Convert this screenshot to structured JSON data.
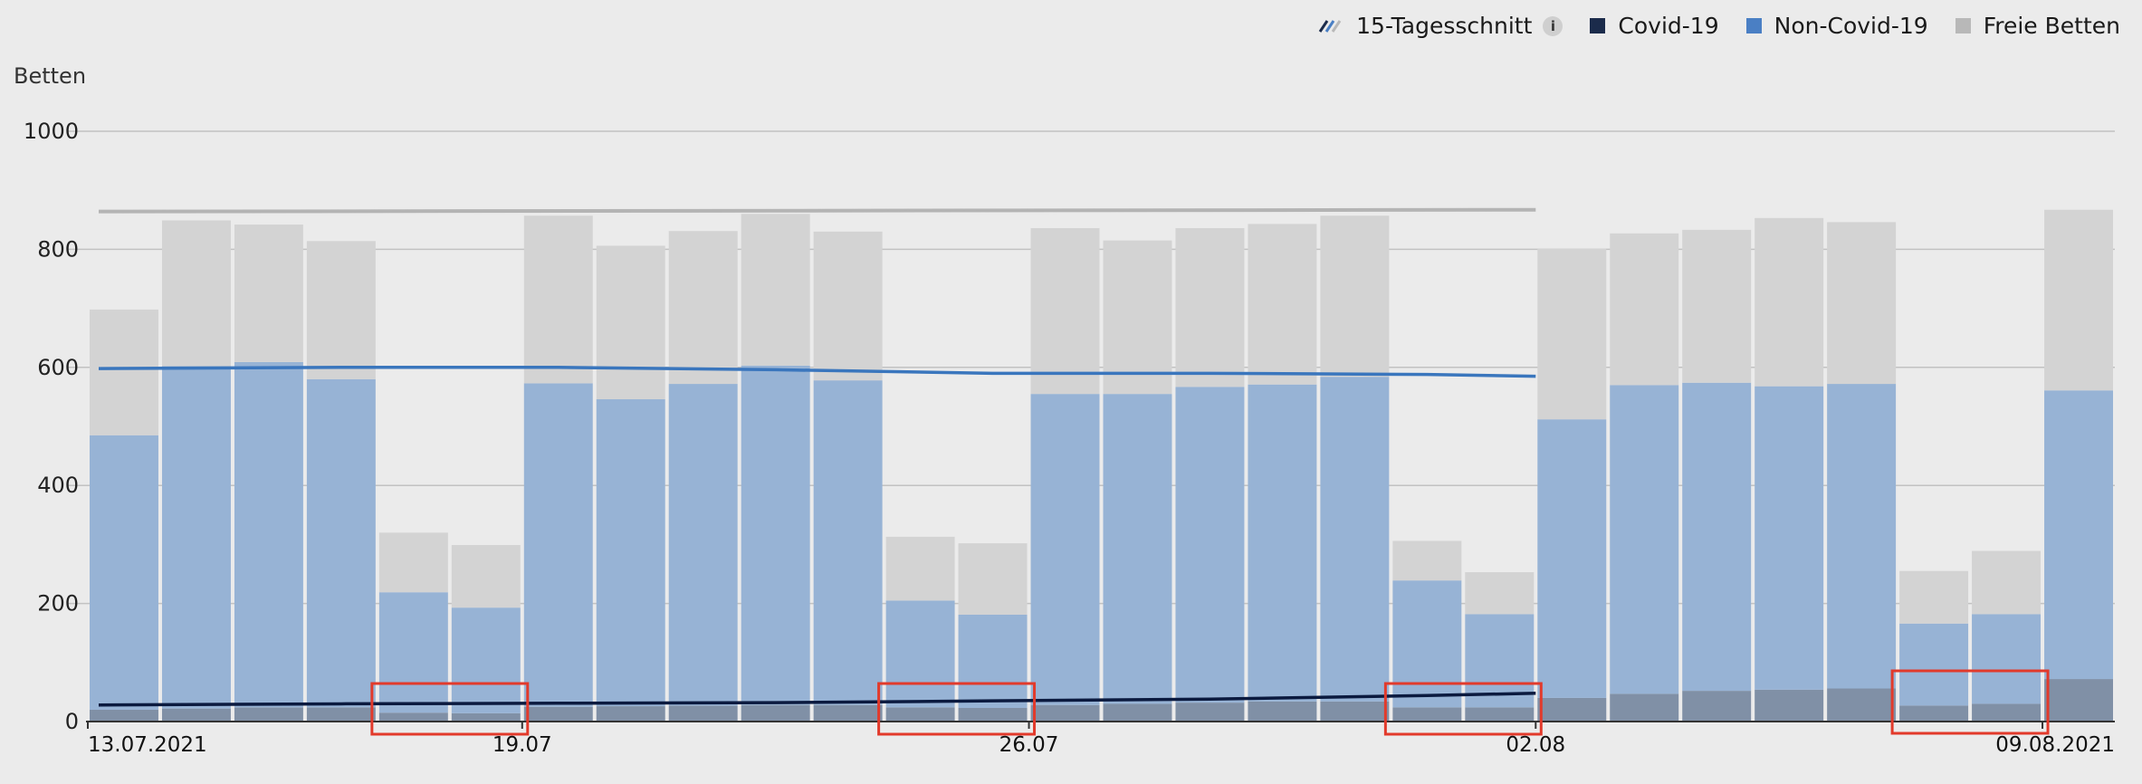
{
  "colors": {
    "background": "#ebebeb",
    "covid": "#1b2b4b",
    "non_covid": "#4a7fc4",
    "free_beds": "#b8b8b8",
    "covid_bar": "#8090a6",
    "non_covid_bar": "#97b3d5",
    "free_bar": "#d3d3d3",
    "avg_covid_line": "#0b1a3f",
    "avg_noncovid_line": "#3a76bd",
    "avg_total_line": "#b4b4b4",
    "grid": "#c2c2c2",
    "highlight_box": "#e23a2b"
  },
  "legend": {
    "avg_label": "15-Tagesschnitt",
    "info_icon": "i",
    "covid_label": "Covid-19",
    "noncovid_label": "Non-Covid-19",
    "free_label": "Freie Betten"
  },
  "chart_data": {
    "type": "bar",
    "stacked": true,
    "ylabel": "Betten",
    "ylim": [
      0,
      1000
    ],
    "yticks": [
      0,
      200,
      400,
      600,
      800,
      1000
    ],
    "grid": true,
    "legend_position": "top-right",
    "x_tick_labels": [
      {
        "index": 0,
        "label": "13.07.2021"
      },
      {
        "index": 6,
        "label": "19.07"
      },
      {
        "index": 13,
        "label": "26.07"
      },
      {
        "index": 20,
        "label": "02.08"
      },
      {
        "index": 27,
        "label": "09.08.2021"
      }
    ],
    "categories": [
      "13.07.2021",
      "14.07.2021",
      "15.07.2021",
      "16.07.2021",
      "17.07.2021",
      "18.07.2021",
      "19.07.2021",
      "20.07.2021",
      "21.07.2021",
      "22.07.2021",
      "23.07.2021",
      "24.07.2021",
      "25.07.2021",
      "26.07.2021",
      "27.07.2021",
      "28.07.2021",
      "29.07.2021",
      "30.07.2021",
      "31.07.2021",
      "01.08.2021",
      "02.08.2021",
      "03.08.2021",
      "04.08.2021",
      "05.08.2021",
      "06.08.2021",
      "07.08.2021",
      "08.08.2021",
      "09.08.2021"
    ],
    "series": [
      {
        "name": "Covid-19",
        "values": [
          20,
          22,
          24,
          24,
          15,
          14,
          25,
          26,
          27,
          28,
          28,
          24,
          23,
          28,
          30,
          32,
          34,
          34,
          24,
          24,
          40,
          47,
          52,
          54,
          56,
          27,
          30,
          72
        ]
      },
      {
        "name": "Non-Covid-19",
        "values": [
          465,
          580,
          585,
          556,
          204,
          179,
          548,
          520,
          545,
          575,
          550,
          181,
          158,
          527,
          525,
          535,
          537,
          550,
          215,
          158,
          472,
          523,
          522,
          514,
          516,
          139,
          152,
          489
        ]
      },
      {
        "name": "Freie Betten",
        "values": [
          213,
          247,
          233,
          234,
          101,
          106,
          284,
          260,
          259,
          257,
          252,
          108,
          121,
          281,
          260,
          269,
          272,
          273,
          67,
          71,
          289,
          257,
          259,
          285,
          274,
          89,
          107,
          306
        ]
      }
    ],
    "averages": [
      {
        "name": "15-Tagesschnitt",
        "x_index": [
          0,
          3,
          6,
          9,
          12,
          15,
          18,
          20
        ],
        "values": [
          28,
          30,
          31,
          32,
          35,
          38,
          44,
          48
        ]
      },
      {
        "name": "15-Tagesschnitt",
        "x_index": [
          0,
          3,
          6,
          9,
          12,
          15,
          18,
          20
        ],
        "values": [
          598,
          600,
          600,
          596,
          590,
          590,
          588,
          585
        ]
      },
      {
        "name": "15-Tagesschnitt",
        "x_index": [
          0,
          20
        ],
        "values": [
          864,
          867
        ]
      }
    ],
    "highlight_groups": [
      [
        4,
        5
      ],
      [
        11,
        12
      ],
      [
        18,
        19
      ],
      [
        25,
        26
      ]
    ]
  }
}
